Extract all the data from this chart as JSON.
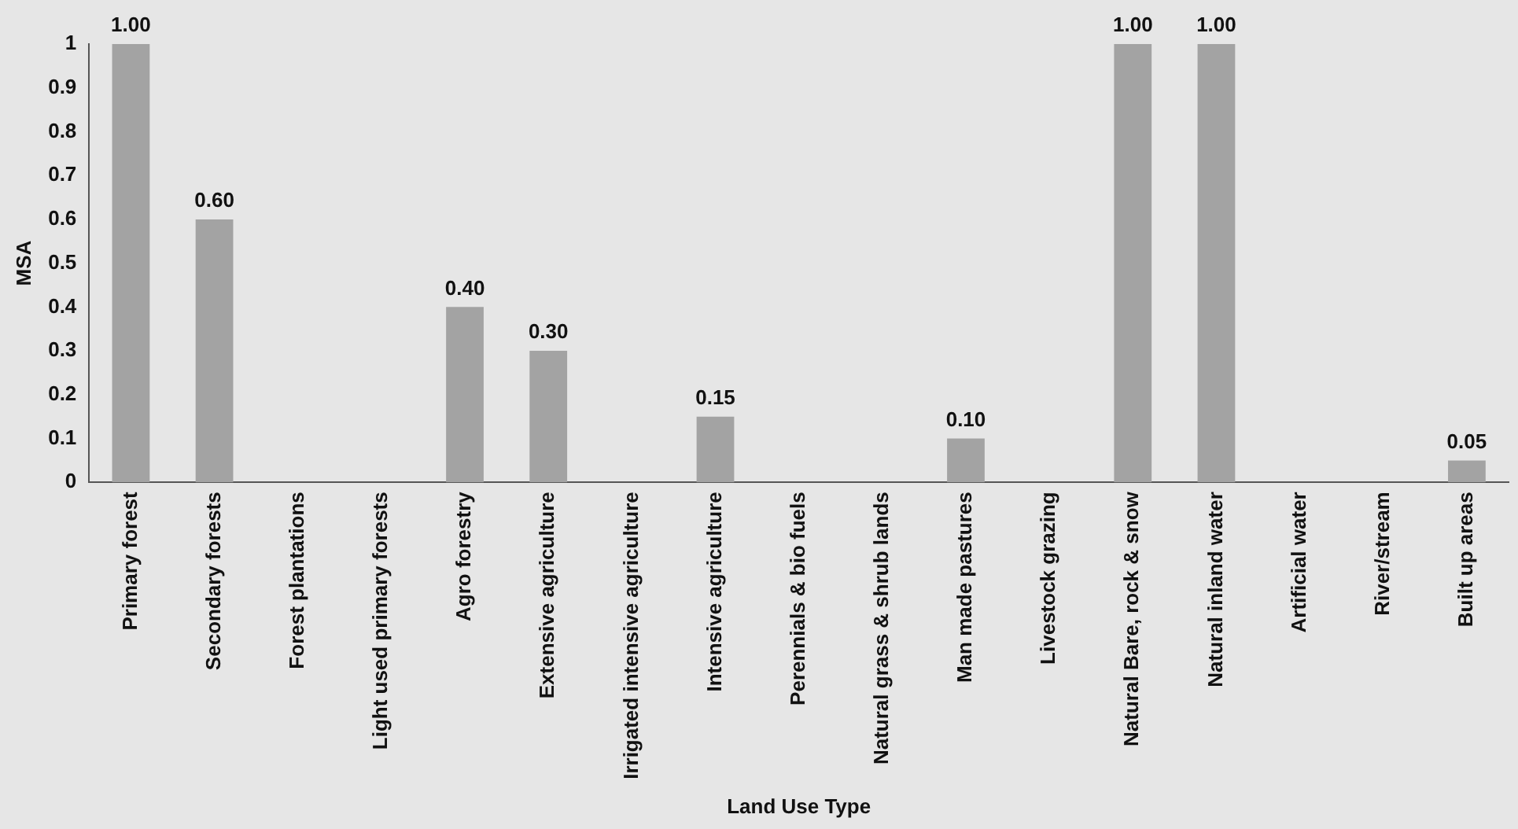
{
  "chart_data": {
    "type": "bar",
    "xlabel": "Land Use Type",
    "ylabel": "MSA",
    "categories": [
      "Primary forest",
      "Secondary forests",
      "Forest plantations",
      "Light used primary forests",
      "Agro forestry",
      "Extensive agriculture",
      "Irrigated intensive agriculture",
      "Intensive agriculture",
      "Perennials & bio fuels",
      "Natural grass & shrub lands",
      "Man made pastures",
      "Livestock grazing",
      "Natural Bare, rock & snow",
      "Natural inland water",
      "Artificial water",
      "River/stream",
      "Built up areas"
    ],
    "values": [
      1,
      0.6,
      null,
      null,
      0.4,
      0.3,
      null,
      0.15,
      null,
      null,
      0.1,
      null,
      1,
      1,
      null,
      null,
      0.05
    ],
    "value_labels": [
      "1.00",
      "0.60",
      null,
      null,
      "0.40",
      "0.30",
      null,
      "0.15",
      null,
      null,
      "0.10",
      null,
      "1.00",
      "1.00",
      null,
      null,
      "0.05"
    ],
    "color": "#a3a3a3",
    "ylim": [
      0,
      1
    ],
    "yticks": [
      0,
      0.1,
      0.2,
      0.3,
      0.4,
      0.5,
      0.6,
      0.7,
      0.8,
      0.9,
      1
    ],
    "grid": false,
    "legend": false
  }
}
